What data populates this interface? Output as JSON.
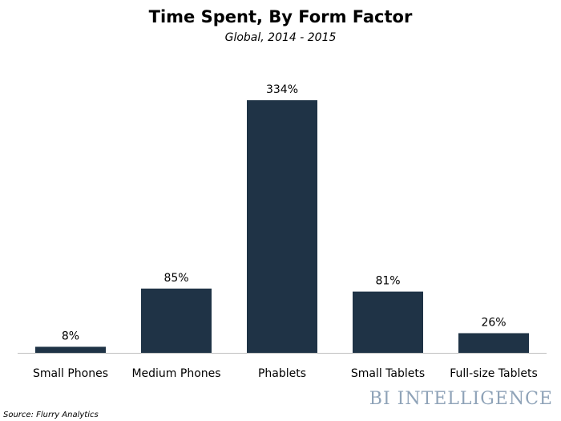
{
  "chart_data": {
    "type": "bar",
    "title": "Time Spent, By Form Factor",
    "subtitle": "Global, 2014 - 2015",
    "categories": [
      "Small Phones",
      "Medium Phones",
      "Phablets",
      "Small Tablets",
      "Full-size Tablets"
    ],
    "values": [
      8,
      85,
      334,
      81,
      26
    ],
    "value_labels": [
      "8%",
      "85%",
      "334%",
      "81%",
      "26%"
    ],
    "color": "#1f3346",
    "source": "Source: Flurry Analytics",
    "logo": "BI INTELLIGENCE"
  }
}
